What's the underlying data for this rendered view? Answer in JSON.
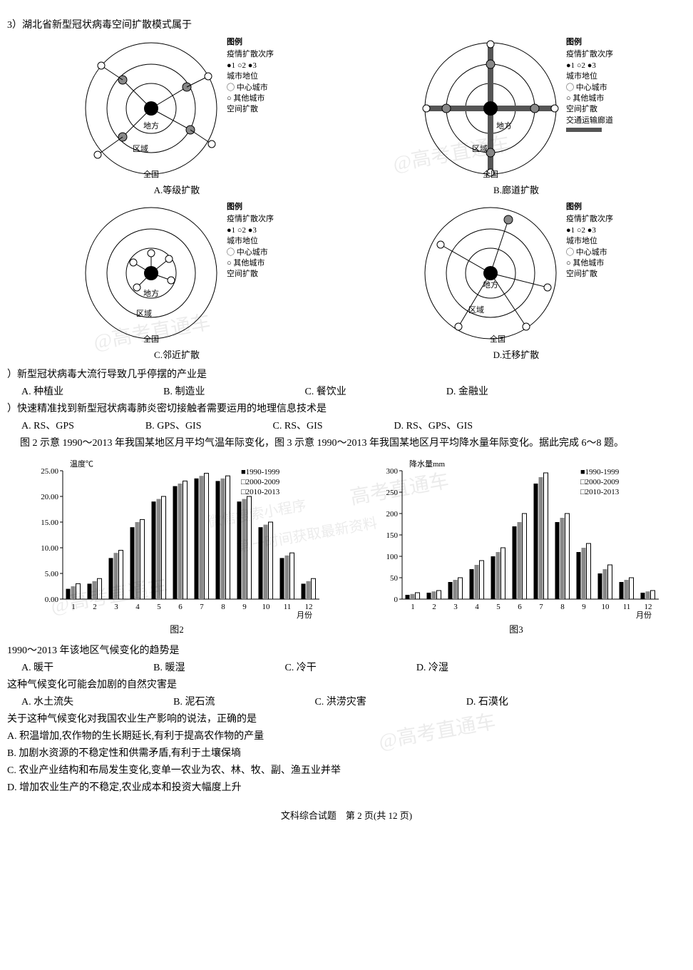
{
  "q3": {
    "stem": "3）湖北省新型冠状病毒空间扩散模式属于",
    "diagrams": {
      "A": {
        "caption": "A.等级扩散"
      },
      "B": {
        "caption": "B.廊道扩散"
      },
      "C": {
        "caption": "C.邻近扩散"
      },
      "D": {
        "caption": "D.迁移扩散"
      }
    },
    "legend_common": {
      "title": "图例",
      "seq_label": "疫情扩散次序",
      "seq_items": "●1 ○2 ●3",
      "city_label": "城市地位",
      "center": "中心城市",
      "other": "其他城市",
      "mode": "空间扩散",
      "route": "交通运输廊道"
    },
    "rings": [
      "地方",
      "区域",
      "全国"
    ]
  },
  "q4": {
    "stem": "）新型冠状病毒大流行导致几乎停摆的产业是",
    "opts": {
      "A": "A. 种植业",
      "B": "B. 制造业",
      "C": "C. 餐饮业",
      "D": "D. 金融业"
    }
  },
  "q5": {
    "stem": "）快速精准找到新型冠状病毒肺炎密切接触者需要运用的地理信息技术是",
    "opts": {
      "A": "A. RS、GPS",
      "B": "B. GPS、GIS",
      "C": "C. RS、GIS",
      "D": "D. RS、GPS、GIS"
    }
  },
  "stem_6_8": "图 2 示意 1990～2013 年我国某地区月平均气温年际变化，图 3 示意 1990～2013 年我国某地区月平均降水量年际变化。据此完成 6～8 题。",
  "chart2": {
    "type": "bar",
    "title": "图2",
    "y_label": "温度℃",
    "x_label": "月份",
    "ylim": [
      0,
      25
    ],
    "ytick_step": 5,
    "y_ticks_labels": [
      "0.00",
      "5.00",
      "10.00",
      "15.00",
      "20.00",
      "25.00"
    ],
    "categories": [
      1,
      2,
      3,
      4,
      5,
      6,
      7,
      8,
      9,
      10,
      11,
      12
    ],
    "series": [
      {
        "name": "1990-1999",
        "fill": "#000000",
        "values": [
          2,
          3,
          8,
          14,
          19,
          22,
          23.5,
          23,
          19,
          14,
          8,
          3
        ]
      },
      {
        "name": "2000-2009",
        "fill": "#888888",
        "values": [
          2.5,
          3.5,
          9,
          15,
          19.5,
          22.5,
          24,
          23.5,
          19.5,
          14.5,
          8.5,
          3.5
        ]
      },
      {
        "name": "2010-2013",
        "fill": "#ffffff",
        "stroke": "#000000",
        "values": [
          3,
          4,
          9.5,
          15.5,
          20,
          23,
          24.5,
          24,
          20,
          15,
          9,
          4
        ]
      }
    ],
    "legend": [
      "■1990-1999",
      "□2000-2009",
      "□2010-2013"
    ],
    "background_color": "#ffffff",
    "grid": false,
    "bar_group_width": 0.7
  },
  "chart3": {
    "type": "bar",
    "title": "图3",
    "y_label": "降水量mm",
    "x_label": "月份",
    "ylim": [
      0,
      300
    ],
    "ytick_step": 50,
    "y_ticks_labels": [
      "0",
      "50",
      "100",
      "150",
      "200",
      "250",
      "300"
    ],
    "categories": [
      1,
      2,
      3,
      4,
      5,
      6,
      7,
      8,
      9,
      10,
      11,
      12
    ],
    "series": [
      {
        "name": "1990-1999",
        "fill": "#000000",
        "values": [
          10,
          15,
          40,
          70,
          100,
          170,
          270,
          180,
          110,
          60,
          40,
          15
        ]
      },
      {
        "name": "2000-2009",
        "fill": "#888888",
        "values": [
          12,
          18,
          45,
          80,
          110,
          180,
          285,
          190,
          120,
          70,
          45,
          18
        ]
      },
      {
        "name": "2010-2013",
        "fill": "#ffffff",
        "stroke": "#000000",
        "values": [
          15,
          20,
          50,
          90,
          120,
          200,
          295,
          200,
          130,
          80,
          50,
          20
        ]
      }
    ],
    "legend": [
      "■1990-1999",
      "□2000-2009",
      "□2010-2013"
    ],
    "background_color": "#ffffff",
    "grid": false,
    "bar_group_width": 0.7
  },
  "q6": {
    "stem": "1990～2013 年该地区气候变化的趋势是",
    "opts": {
      "A": "A. 暖干",
      "B": "B. 暖湿",
      "C": "C. 冷干",
      "D": "D. 冷湿"
    }
  },
  "q7": {
    "stem": "这种气候变化可能会加剧的自然灾害是",
    "opts": {
      "A": "A. 水土流失",
      "B": "B. 泥石流",
      "C": "C. 洪涝灾害",
      "D": "D. 石漠化"
    }
  },
  "q8": {
    "stem": "关于这种气候变化对我国农业生产影响的说法，正确的是",
    "opts": {
      "A": "A. 积温增加,农作物的生长期延长,有利于提高农作物的产量",
      "B": "B. 加剧水资源的不稳定性和供需矛盾,有利于土壤保墒",
      "C": "C. 农业产业结构和布局发生变化,变单一农业为农、林、牧、副、渔五业并举",
      "D": "D. 增加农业生产的不稳定,农业成本和投资大幅度上升"
    }
  },
  "footer": "文科综合试题　第 2 页(共 12 页)",
  "watermarks": [
    "@高考直通车",
    "高考直通车",
    "微信搜索小程序",
    "第一时间获取最新资料"
  ]
}
